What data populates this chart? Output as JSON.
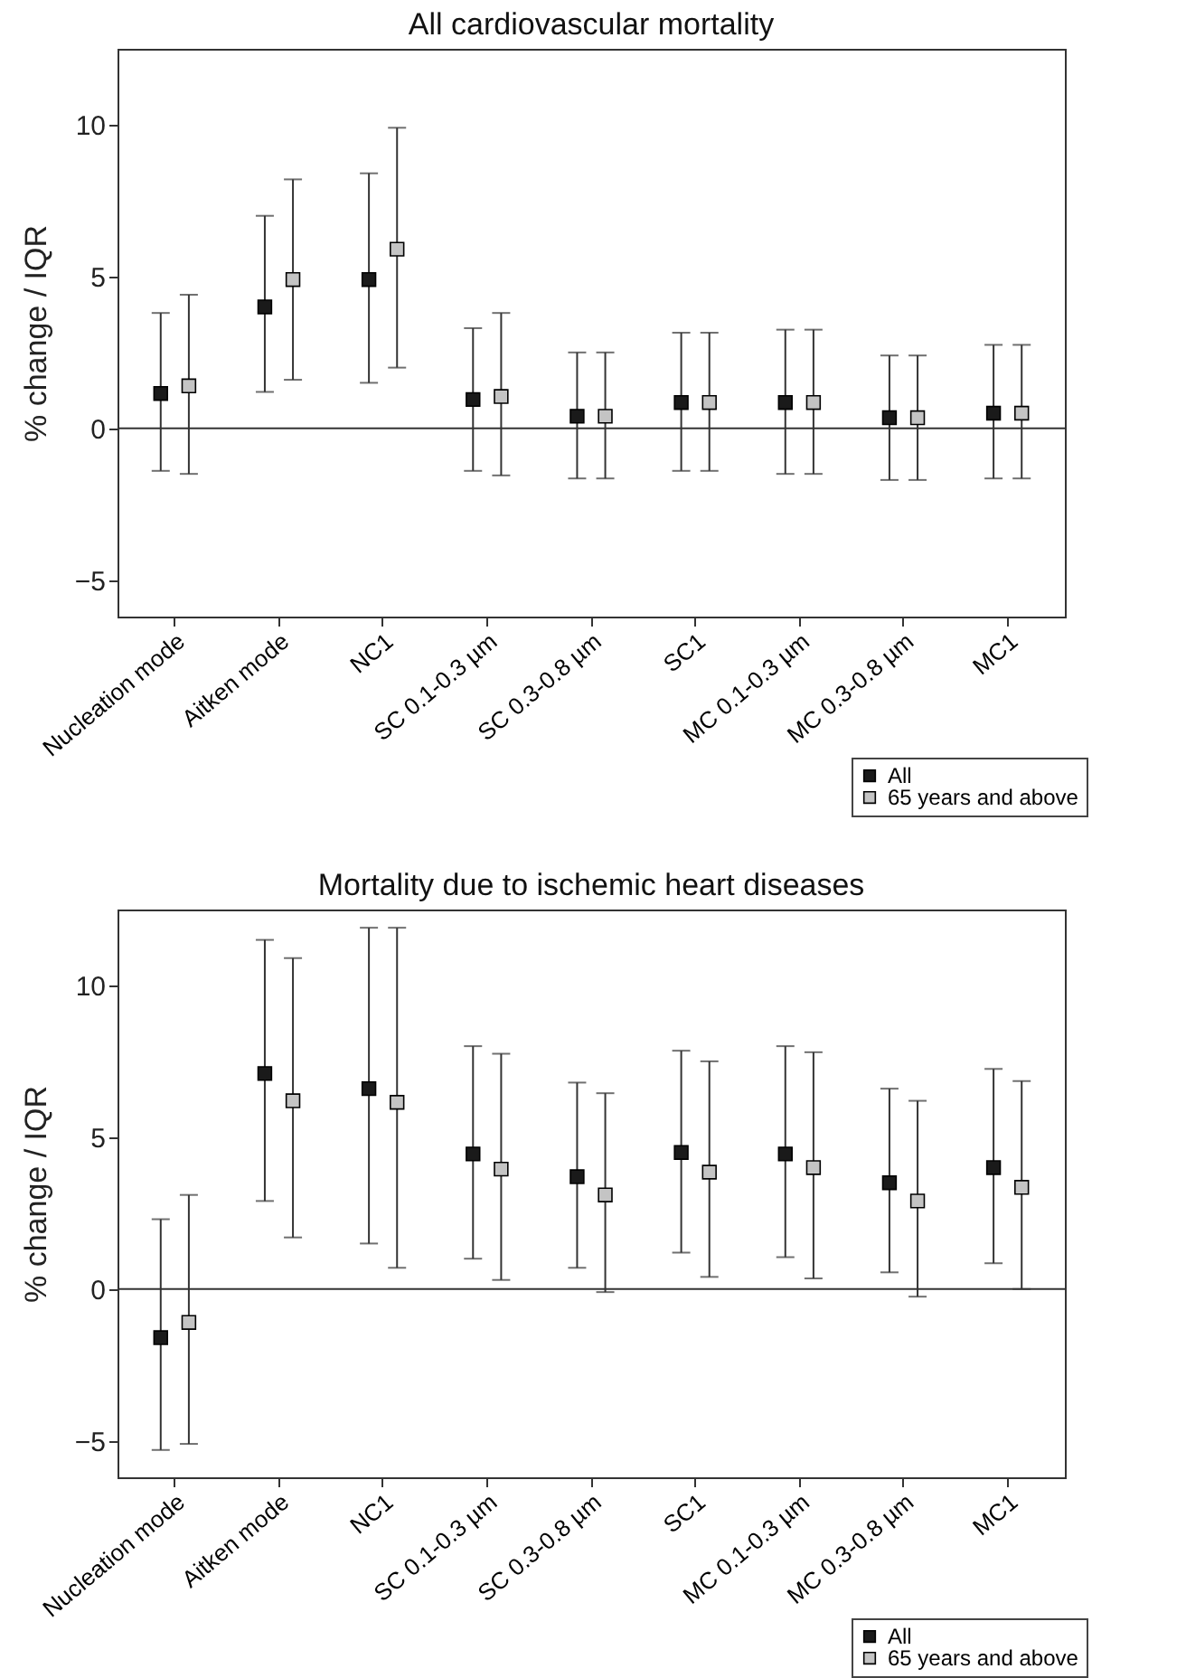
{
  "chart_data": [
    {
      "type": "scatter",
      "title": "All cardiovascular mortality",
      "ylabel": "% change / IQR",
      "categories": [
        "Nucleation mode",
        "Aitken mode",
        "NC1",
        "SC 0.1-0.3 µm",
        "SC 0.3-0.8 µm",
        "SC1",
        "MC 0.1-0.3 µm",
        "MC 0.3-0.8 µm",
        "MC1"
      ],
      "series": [
        {
          "name": "All",
          "color": "#1a1a1a",
          "values": [
            1.15,
            4.0,
            4.9,
            0.95,
            0.4,
            0.85,
            0.85,
            0.35,
            0.5
          ],
          "errors": [
            [
              -1.4,
              3.8
            ],
            [
              1.2,
              7.0
            ],
            [
              1.5,
              8.4
            ],
            [
              -1.4,
              3.3
            ],
            [
              -1.65,
              2.5
            ],
            [
              -1.4,
              3.15
            ],
            [
              -1.5,
              3.25
            ],
            [
              -1.7,
              2.4
            ],
            [
              -1.65,
              2.75
            ]
          ]
        },
        {
          "name": "65 years and above",
          "color": "#c4c4c4",
          "values": [
            1.4,
            4.9,
            5.9,
            1.05,
            0.4,
            0.85,
            0.85,
            0.35,
            0.5
          ],
          "errors": [
            [
              -1.5,
              4.4
            ],
            [
              1.6,
              8.2
            ],
            [
              2.0,
              9.9
            ],
            [
              -1.55,
              3.8
            ],
            [
              -1.65,
              2.5
            ],
            [
              -1.4,
              3.15
            ],
            [
              -1.5,
              3.25
            ],
            [
              -1.7,
              2.4
            ],
            [
              -1.65,
              2.75
            ]
          ]
        }
      ],
      "ylim": [
        -6.2,
        12.5
      ],
      "yticks": [
        -5,
        0,
        5,
        10
      ],
      "ref_lines": [
        {
          "axis": "y",
          "value": 0
        }
      ],
      "marker": "square",
      "legend": "bottom right",
      "grid": false
    },
    {
      "type": "scatter",
      "title": "Mortality due to ischemic heart diseases",
      "ylabel": "% change / IQR",
      "categories": [
        "Nucleation mode",
        "Aitken mode",
        "NC1",
        "SC 0.1-0.3 µm",
        "SC 0.3-0.8 µm",
        "SC1",
        "MC 0.1-0.3 µm",
        "MC 0.3-0.8 µm",
        "MC1"
      ],
      "series": [
        {
          "name": "All",
          "color": "#1a1a1a",
          "values": [
            -1.6,
            7.1,
            6.6,
            4.45,
            3.7,
            4.5,
            4.45,
            3.5,
            4.0
          ],
          "errors": [
            [
              -5.3,
              2.3
            ],
            [
              2.9,
              11.5
            ],
            [
              1.5,
              11.9
            ],
            [
              1.0,
              8.0
            ],
            [
              0.7,
              6.8
            ],
            [
              1.2,
              7.85
            ],
            [
              1.05,
              8.0
            ],
            [
              0.55,
              6.6
            ],
            [
              0.85,
              7.25
            ]
          ]
        },
        {
          "name": "65 years and above",
          "color": "#c4c4c4",
          "values": [
            -1.1,
            6.2,
            6.15,
            3.95,
            3.1,
            3.85,
            4.0,
            2.9,
            3.35
          ],
          "errors": [
            [
              -5.1,
              3.1
            ],
            [
              1.7,
              10.9
            ],
            [
              0.7,
              11.9
            ],
            [
              0.3,
              7.75
            ],
            [
              -0.1,
              6.45
            ],
            [
              0.4,
              7.5
            ],
            [
              0.35,
              7.8
            ],
            [
              -0.25,
              6.2
            ],
            [
              0.0,
              6.85
            ]
          ]
        }
      ],
      "ylim": [
        -6.2,
        12.5
      ],
      "yticks": [
        -5,
        0,
        5,
        10
      ],
      "ref_lines": [
        {
          "axis": "y",
          "value": 0
        }
      ],
      "marker": "square",
      "legend": "bottom right",
      "grid": false
    }
  ]
}
